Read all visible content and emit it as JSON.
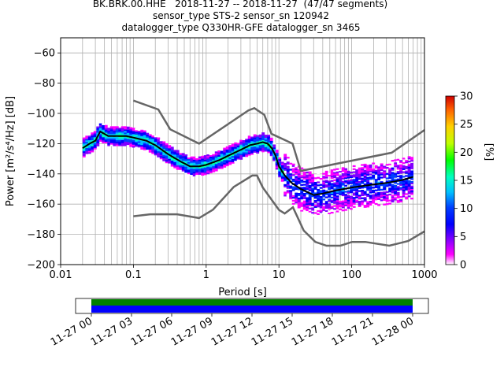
{
  "title": {
    "line1": "BK.BRK.00.HHE   2018-11-27 -- 2018-11-27  (47/47 segments)",
    "line2": "sensor_type STS-2 sensor_sn 120942",
    "line3": "datalogger_type Q330HR-GFE datalogger_sn 3465"
  },
  "chart_data": [
    {
      "type": "heatmap",
      "title": "BK.BRK.00.HHE   2018-11-27 -- 2018-11-27  (47/47 segments)",
      "xlabel": "Period [s]",
      "ylabel": "Power [m²/s⁴/Hz] [dB]",
      "xscale": "log",
      "xlim": [
        0.01,
        1000
      ],
      "ylim": [
        -200,
        -50
      ],
      "x_tick_labels": [
        "0.01",
        "0.1",
        "1",
        "10",
        "100",
        "1000"
      ],
      "x_ticks": [
        0.01,
        0.1,
        1,
        10,
        100,
        1000
      ],
      "y_ticks": [
        -200,
        -180,
        -160,
        -140,
        -120,
        -100,
        -80,
        -60
      ],
      "y_tick_labels": [
        "−200",
        "−180",
        "−160",
        "−140",
        "−120",
        "−100",
        "−80",
        "−60"
      ],
      "grid": true,
      "colorbar": {
        "label": "[%]",
        "range": [
          0,
          30
        ],
        "ticks": [
          0,
          5,
          10,
          15,
          20,
          25,
          30
        ]
      },
      "noise_models": {
        "high": {
          "x": [
            0.1,
            0.22,
            0.32,
            0.8,
            3.8,
            4.6,
            6.3,
            7.9,
            15.4,
            20,
            354.8,
            1000
          ],
          "y": [
            -91.5,
            -97.4,
            -110.5,
            -120,
            -98,
            -96.5,
            -101,
            -113.5,
            -120,
            -138,
            -126,
            -111
          ]
        },
        "low": {
          "x": [
            0.1,
            0.17,
            0.4,
            0.8,
            1.24,
            2.4,
            4.3,
            5,
            6,
            10,
            12,
            15.6,
            21.9,
            31.6,
            45,
            70,
            101,
            154,
            328,
            600,
            1000
          ],
          "y": [
            -168,
            -166.7,
            -166.7,
            -169.2,
            -163.7,
            -148.6,
            -141.1,
            -141.1,
            -149,
            -163.8,
            -166.2,
            -162.1,
            -177.5,
            -185,
            -187.5,
            -187.5,
            -185,
            -185,
            -187.5,
            -184.4,
            -178
          ]
        }
      },
      "median": {
        "x": [
          0.02,
          0.025,
          0.03,
          0.035,
          0.045,
          0.06,
          0.08,
          0.1,
          0.15,
          0.2,
          0.3,
          0.45,
          0.6,
          0.8,
          1,
          1.5,
          2,
          3,
          4,
          5,
          6,
          7,
          8,
          9,
          10,
          12,
          15,
          20,
          30,
          40,
          60,
          100,
          200,
          300,
          500,
          700
        ],
        "y": [
          -123,
          -120,
          -118,
          -112,
          -115,
          -115,
          -115,
          -116,
          -118,
          -121,
          -127,
          -132,
          -135,
          -135,
          -134,
          -131,
          -128,
          -124,
          -121,
          -120,
          -119,
          -120,
          -123,
          -128,
          -135,
          -141,
          -146,
          -150,
          -154,
          -153,
          -151,
          -149,
          -147,
          -146,
          -144,
          -142
        ]
      },
      "series": [
        {
          "name": "",
          "type": "heatmap-density",
          "x_range": [
            0.02,
            700
          ],
          "y_range": [
            -175,
            -106
          ]
        }
      ]
    },
    {
      "type": "bar",
      "title": "",
      "xlabel": "",
      "x_tick_labels": [
        "11-27 00",
        "11-27 03",
        "11-27 06",
        "11-27 09",
        "11-27 12",
        "11-27 15",
        "11-27 18",
        "11-27 21",
        "11-28 00"
      ],
      "bands": [
        {
          "name": "",
          "color": "#008000",
          "start": "11-27 00",
          "end": "11-28 00"
        },
        {
          "name": "",
          "color": "#0000ff",
          "start": "11-27 00",
          "end": "11-28 00"
        }
      ]
    }
  ],
  "colors": {
    "grid": "#b0b0b0",
    "noise_model": "#666666",
    "median": "#000000",
    "green_band": "#008000",
    "blue_band": "#0000ff"
  }
}
